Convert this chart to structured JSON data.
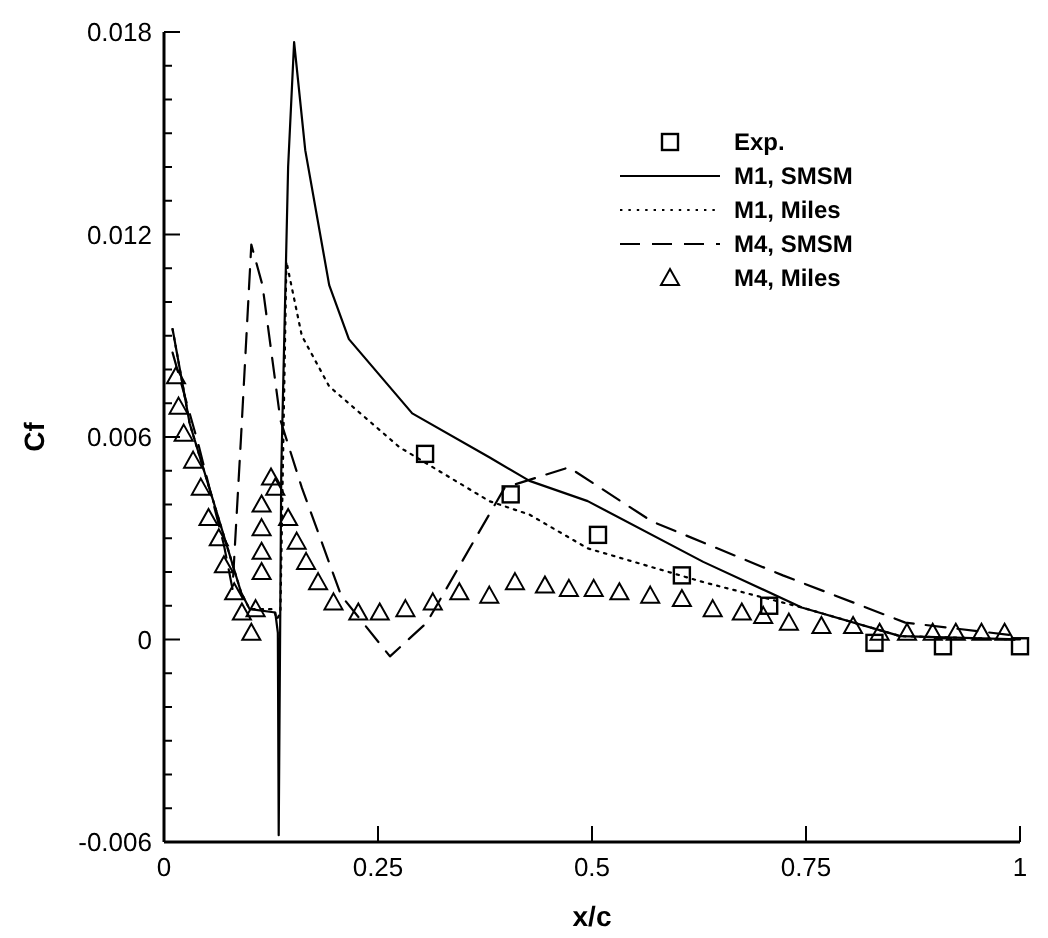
{
  "chart_data": {
    "type": "line",
    "xlabel": "x/c",
    "ylabel": "Cf",
    "xlim": [
      0,
      1
    ],
    "ylim": [
      -0.006,
      0.018
    ],
    "xticks": [
      0,
      0.25,
      0.5,
      0.75,
      1
    ],
    "yticks": [
      -0.006,
      {
        "value": -0.005,
        "label": null
      },
      {
        "value": -0.004,
        "label": null
      },
      {
        "value": -0.003,
        "label": null
      },
      {
        "value": -0.002,
        "label": null
      },
      {
        "value": -0.001,
        "label": null
      },
      0,
      {
        "value": 0.001,
        "label": null
      },
      {
        "value": 0.002,
        "label": null
      },
      {
        "value": 0.003,
        "label": null
      },
      {
        "value": 0.004,
        "label": null
      },
      {
        "value": 0.005,
        "label": null
      },
      0.006,
      {
        "value": 0.007,
        "label": null
      },
      {
        "value": 0.008,
        "label": null
      },
      {
        "value": 0.009,
        "label": null
      },
      {
        "value": 0.01,
        "label": null
      },
      {
        "value": 0.011,
        "label": null
      },
      0.012,
      {
        "value": 0.013,
        "label": null
      },
      {
        "value": 0.014,
        "label": null
      },
      {
        "value": 0.015,
        "label": null
      },
      {
        "value": 0.016,
        "label": null
      },
      {
        "value": 0.017,
        "label": null
      },
      0.018
    ],
    "legend": "top right",
    "grid": false,
    "series": [
      {
        "name": "Exp.",
        "type": "scatter",
        "marker": "square",
        "color": "#000000",
        "x": [
          0.305,
          0.405,
          0.507,
          0.605,
          0.707,
          0.83,
          0.91,
          1.0
        ],
        "values": [
          0.0055,
          0.0043,
          0.0031,
          0.0019,
          0.001,
          -0.0001,
          -0.0002,
          -0.0002
        ]
      },
      {
        "name": "M1, SMSM",
        "type": "line",
        "line_style": "solid",
        "color": "#000000",
        "x": [
          0.01,
          0.03,
          0.06,
          0.09,
          0.1,
          0.13,
          0.133,
          0.134,
          0.137,
          0.145,
          0.152,
          0.165,
          0.193,
          0.216,
          0.29,
          0.38,
          0.427,
          0.495,
          0.63,
          0.745,
          0.86,
          1.0
        ],
        "values": [
          0.0092,
          0.0064,
          0.0039,
          0.0014,
          0.0009,
          0.0008,
          0.0002,
          -0.0058,
          0.005,
          0.014,
          0.0177,
          0.0145,
          0.0105,
          0.0089,
          0.0067,
          0.0054,
          0.0047,
          0.0041,
          0.0023,
          0.00095,
          0.0001,
          0.0
        ]
      },
      {
        "name": "M1, Miles",
        "type": "line",
        "line_style": "dotted",
        "color": "#000000",
        "x": [
          0.01,
          0.03,
          0.06,
          0.09,
          0.1,
          0.128,
          0.132,
          0.136,
          0.143,
          0.161,
          0.193,
          0.275,
          0.38,
          0.427,
          0.495,
          0.63,
          0.745,
          0.86,
          1.0
        ],
        "values": [
          0.0092,
          0.0064,
          0.0039,
          0.0014,
          0.0009,
          0.0009,
          0.0006,
          0.0008,
          0.0112,
          0.009,
          0.0075,
          0.0057,
          0.0041,
          0.0037,
          0.0027,
          0.0017,
          0.00095,
          0.0001,
          0.0
        ]
      },
      {
        "name": "M4, SMSM",
        "type": "line",
        "line_style": "dashed",
        "color": "#000000",
        "x": [
          0.01,
          0.04,
          0.07,
          0.08,
          0.09,
          0.102,
          0.115,
          0.136,
          0.161,
          0.207,
          0.264,
          0.307,
          0.398,
          0.473,
          0.57,
          0.723,
          0.866,
          1.0
        ],
        "values": [
          0.0085,
          0.0058,
          0.0028,
          0.0015,
          0.006,
          0.0117,
          0.0105,
          0.0065,
          0.0045,
          0.0013,
          -0.0005,
          0.0005,
          0.0045,
          0.0051,
          0.0035,
          0.0019,
          0.0005,
          0.0001
        ]
      },
      {
        "name": "M4, Miles",
        "type": "scatter",
        "marker": "triangle",
        "color": "#000000",
        "x": [
          0.014,
          0.017,
          0.023,
          0.034,
          0.043,
          0.052,
          0.064,
          0.07,
          0.082,
          0.091,
          0.102,
          0.107,
          0.114,
          0.114,
          0.114,
          0.114,
          0.125,
          0.13,
          0.145,
          0.155,
          0.166,
          0.18,
          0.198,
          0.227,
          0.252,
          0.282,
          0.314,
          0.345,
          0.38,
          0.41,
          0.445,
          0.473,
          0.502,
          0.532,
          0.568,
          0.605,
          0.641,
          0.675,
          0.7,
          0.73,
          0.768,
          0.805,
          0.836,
          0.868,
          0.898,
          0.925,
          0.955,
          0.982
        ],
        "values": [
          0.0078,
          0.0069,
          0.0061,
          0.0053,
          0.0045,
          0.0036,
          0.003,
          0.0022,
          0.0014,
          0.0008,
          0.0002,
          0.0009,
          0.002,
          0.0026,
          0.0033,
          0.004,
          0.0048,
          0.0045,
          0.0036,
          0.0029,
          0.0023,
          0.0017,
          0.0011,
          0.0008,
          0.0008,
          0.0009,
          0.0011,
          0.0014,
          0.0013,
          0.0017,
          0.0016,
          0.0015,
          0.0015,
          0.0014,
          0.0013,
          0.0012,
          0.0009,
          0.0008,
          0.0007,
          0.0005,
          0.0004,
          0.0004,
          0.0002,
          0.0002,
          0.0002,
          0.0002,
          0.0002,
          0.0002
        ]
      }
    ]
  }
}
